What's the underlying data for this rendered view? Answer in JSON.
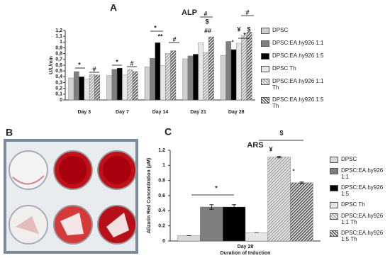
{
  "panels": [
    "A",
    "B",
    "C"
  ],
  "chart_data": [
    {
      "type": "bar",
      "title": "ALP",
      "y_label": "U/L/min",
      "categories": [
        "Day 3",
        "Day 7",
        "Day 14",
        "Day 21",
        "Day 28"
      ],
      "ylim": [
        0,
        1.2
      ],
      "yticks": [
        0,
        {
          "value": 0.1,
          "label": "0,1"
        },
        {
          "value": 0.2,
          "label": "0,2"
        },
        {
          "value": 0.3,
          "label": "0,3"
        },
        {
          "value": 0.4,
          "label": "0,4"
        },
        {
          "value": 0.5,
          "label": "0,5"
        },
        {
          "value": 0.6,
          "label": "0,6"
        },
        {
          "value": 0.7,
          "label": "0,7"
        },
        {
          "value": 0.8,
          "label": "0,8"
        },
        {
          "value": 0.9,
          "label": "0,9"
        },
        1,
        {
          "value": 1.1,
          "label": "1,1"
        },
        {
          "value": 1.2,
          "label": "1,2"
        }
      ],
      "series": [
        {
          "name": "DPSC",
          "color": "#d0d0d0",
          "hatch": false,
          "values": [
            0.38,
            0.42,
            0.57,
            0.71,
            0.77
          ]
        },
        {
          "name": "DPSC:EA.hy926 1:1",
          "color": "#7f7f7f",
          "hatch": false,
          "values": [
            0.49,
            0.53,
            0.72,
            0.76,
            1.01
          ]
        },
        {
          "name": "DPSC:EA.hy926 1:5",
          "color": "#000000",
          "hatch": false,
          "values": [
            0.4,
            0.55,
            0.99,
            0.79,
            0.87
          ]
        },
        {
          "name": "DPSC Th",
          "color": "#e6e6e6",
          "hatch": false,
          "values": [
            0.36,
            0.43,
            0.59,
            0.99,
            0.98
          ]
        },
        {
          "name": "DPSC:EA.hy926 1:1 Th",
          "color": "#a6a6a6",
          "hatch": true,
          "values": [
            0.44,
            0.52,
            0.8,
            0.82,
            1.11
          ]
        },
        {
          "name": "DPSC:EA.hy926 1:5 Th",
          "color": "#595959",
          "hatch": true,
          "values": [
            0.43,
            0.49,
            0.85,
            1.09,
            1.17
          ]
        }
      ],
      "annotations": [
        "*",
        "#",
        "*",
        "#",
        "*",
        "**",
        "#",
        "#",
        "$",
        "##",
        "#",
        "¥",
        "$",
        "*",
        "°"
      ]
    },
    {
      "type": "bar",
      "title": "ARS",
      "y_label": "Alizarin Red Concentration (µM)",
      "x_label": "Duration of Induction",
      "categories": [
        "Day 28"
      ],
      "ylim": [
        0,
        1.2
      ],
      "yticks": [
        0,
        0.2,
        0.4,
        0.6,
        0.8,
        1,
        1.2
      ],
      "series": [
        {
          "name": "DPSC",
          "color": "#d9d9d9",
          "hatch": false,
          "values": [
            0.07
          ],
          "errors": [
            0
          ]
        },
        {
          "name": "DPSC:EA.hy926 1:1",
          "color": "#7f7f7f",
          "hatch": false,
          "values": [
            0.45
          ],
          "errors": [
            0.03
          ]
        },
        {
          "name": "DPSC:EA.hy926 1:5",
          "color": "#000000",
          "hatch": false,
          "values": [
            0.45
          ],
          "errors": [
            0.03
          ]
        },
        {
          "name": "DPSC Th",
          "color": "#e6e6e6",
          "hatch": false,
          "values": [
            0.11
          ],
          "errors": [
            0
          ]
        },
        {
          "name": "DPSC:EA.hy926 1:1 Th",
          "color": "#a6a6a6",
          "hatch": true,
          "values": [
            1.11
          ],
          "errors": [
            0.01
          ]
        },
        {
          "name": "DPSC:EA.hy926 1:5 Th",
          "color": "#595959",
          "hatch": true,
          "values": [
            0.77
          ],
          "errors": [
            0.01
          ]
        }
      ],
      "annotations": [
        "*",
        "$",
        "¥",
        "°"
      ]
    }
  ]
}
